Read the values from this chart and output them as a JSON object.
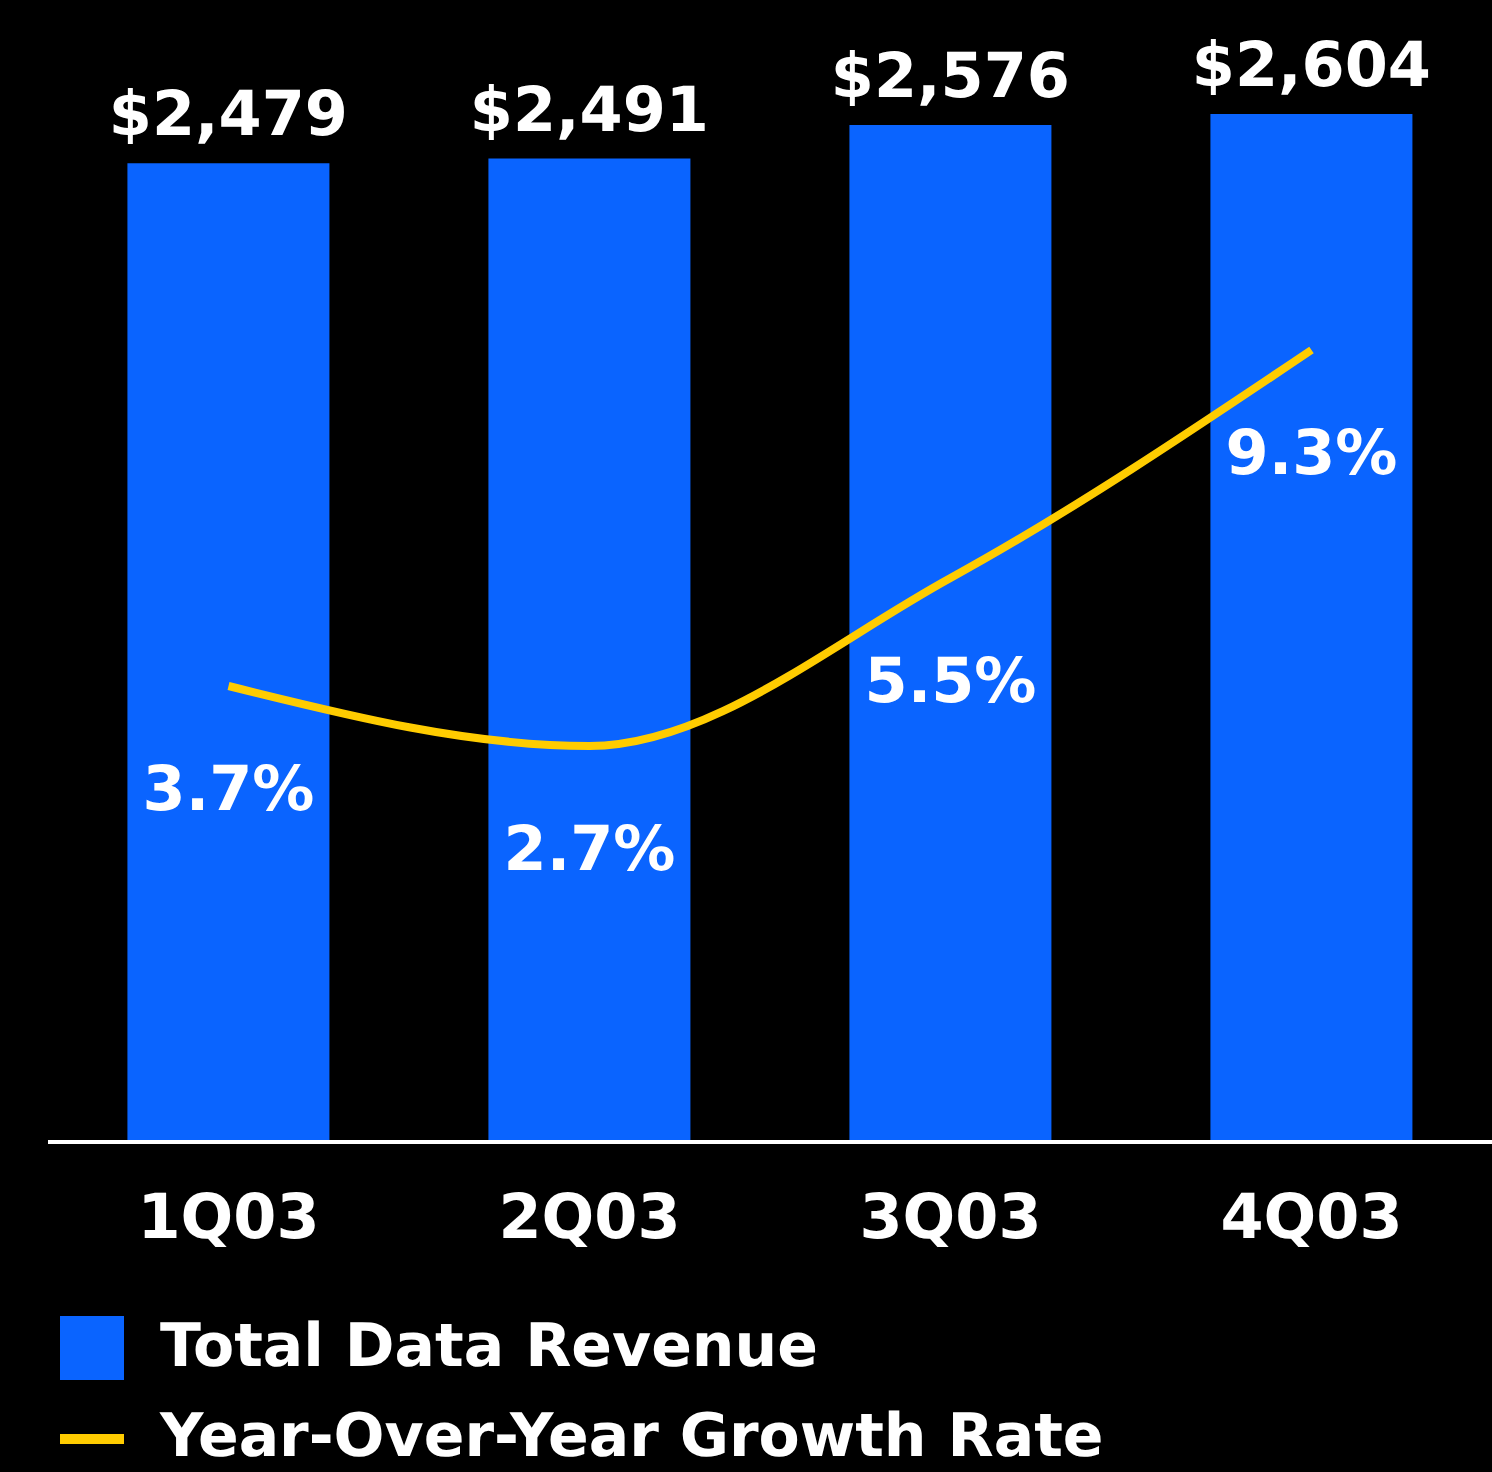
{
  "chart_data": {
    "type": "bar",
    "categories": [
      "1Q03",
      "2Q03",
      "3Q03",
      "4Q03"
    ],
    "series": [
      {
        "name": "Total Data Revenue",
        "color": "#0a64ff",
        "values": [
          2479,
          2491,
          2576,
          2604
        ],
        "value_labels": [
          "$2,479",
          "$2,491",
          "$2,576",
          "$2,604"
        ]
      },
      {
        "name": "Year-Over-Year Growth Rate",
        "type": "line",
        "axis": "y2",
        "color": "#ffcc00",
        "values": [
          3.7,
          2.7,
          5.5,
          9.3
        ],
        "value_labels": [
          "3.7%",
          "2.7%",
          "5.5%",
          "9.3%"
        ]
      }
    ],
    "tick_labels": "x",
    "legend": "bottom left",
    "marker": "none",
    "line_style": "solid",
    "grid": false
  }
}
